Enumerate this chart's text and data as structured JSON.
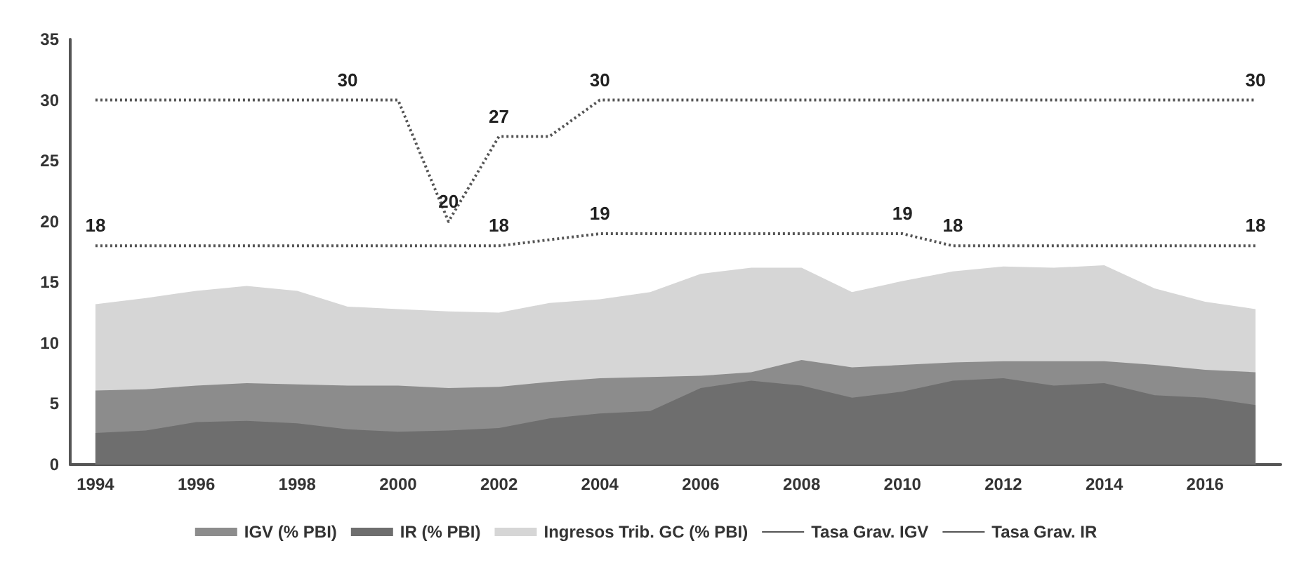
{
  "chart_data": {
    "type": "area",
    "categories": [
      "1994",
      null,
      "1996",
      null,
      "1998",
      null,
      "2000",
      null,
      "2002",
      null,
      "2004",
      null,
      "2006",
      null,
      "2008",
      null,
      "2010",
      null,
      "2012",
      null,
      "2014",
      null,
      "2016",
      null
    ],
    "ylim": [
      0,
      35
    ],
    "yticks": [
      0,
      5,
      10,
      15,
      20,
      25,
      30,
      35
    ],
    "grid": false,
    "legend": "bottom",
    "series": [
      {
        "name": "IGV (% PBI)",
        "color": "#8c8c8c",
        "values": [
          6.1,
          6.2,
          6.5,
          6.7,
          6.6,
          6.5,
          6.5,
          6.3,
          6.4,
          6.8,
          7.1,
          7.2,
          7.3,
          7.6,
          8.6,
          8.0,
          8.2,
          8.4,
          8.5,
          8.5,
          8.5,
          8.2,
          7.8,
          7.6
        ]
      },
      {
        "name": "IR (% PBI)",
        "color": "#6e6e6e",
        "values": [
          2.6,
          2.8,
          3.5,
          3.6,
          3.4,
          2.9,
          2.7,
          2.8,
          3.0,
          3.8,
          4.2,
          4.4,
          6.3,
          6.9,
          6.5,
          5.5,
          6.0,
          6.9,
          7.1,
          6.5,
          6.7,
          5.7,
          5.5,
          4.9
        ]
      },
      {
        "name": "Ingresos Trib. GC (% PBI)",
        "color": "#d6d6d6",
        "values": [
          13.2,
          13.7,
          14.3,
          14.7,
          14.3,
          13.0,
          12.8,
          12.6,
          12.5,
          13.3,
          13.6,
          14.2,
          15.7,
          16.2,
          16.2,
          14.2,
          15.1,
          15.9,
          16.3,
          16.2,
          16.4,
          14.5,
          13.4,
          12.8
        ]
      },
      {
        "name": "Tasa Grav. IGV",
        "type": "line",
        "line_style": "dotted",
        "color": "#555555",
        "values": [
          18,
          18,
          18,
          18,
          18,
          18,
          18,
          18,
          18,
          18.5,
          19,
          19,
          19,
          19,
          19,
          19,
          19,
          18,
          18,
          18,
          18,
          18,
          18,
          18
        ],
        "value_labels": [
          "18",
          null,
          null,
          null,
          null,
          null,
          null,
          null,
          "18",
          null,
          "19",
          null,
          null,
          null,
          null,
          null,
          "19",
          "18",
          null,
          null,
          null,
          null,
          null,
          "18"
        ]
      },
      {
        "name": "Tasa Grav. IR",
        "type": "line",
        "line_style": "dotted",
        "color": "#555555",
        "values": [
          30,
          30,
          30,
          30,
          30,
          30,
          30,
          20,
          27,
          27,
          30,
          30,
          30,
          30,
          30,
          30,
          30,
          30,
          30,
          30,
          30,
          30,
          30,
          30
        ],
        "value_labels": [
          null,
          null,
          null,
          null,
          null,
          "30",
          null,
          "20",
          "27",
          null,
          "30",
          null,
          null,
          null,
          null,
          null,
          null,
          null,
          null,
          null,
          null,
          null,
          null,
          "30"
        ]
      }
    ]
  }
}
